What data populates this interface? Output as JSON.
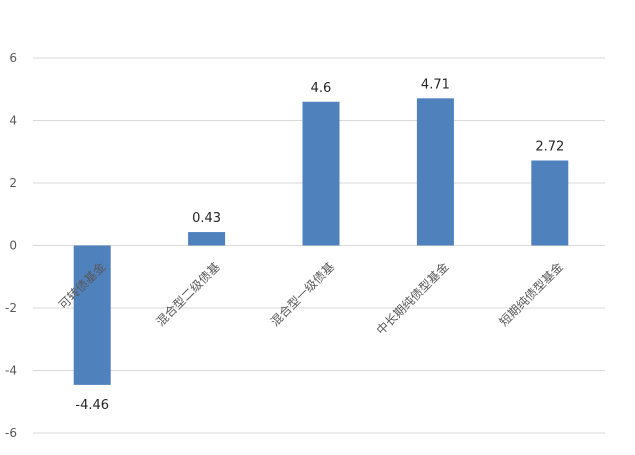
{
  "chart_data": {
    "type": "bar",
    "categories": [
      "可转债基金",
      "混合型二级债基",
      "混合型一级债基",
      "中长期纯债型基金",
      "短期纯债型基金"
    ],
    "values": [
      -4.46,
      0.43,
      4.6,
      4.71,
      2.72
    ],
    "value_labels": [
      "-4.46",
      "0.43",
      "4.6",
      "4.71",
      "2.72"
    ],
    "yticks": [
      "6",
      "4",
      "2",
      "0",
      "-2",
      "-4",
      "-6"
    ],
    "ylim": [
      -6,
      6
    ],
    "title": "",
    "xlabel": "",
    "ylabel": "",
    "grid": true,
    "legend": "none",
    "colors": {
      "bar": "#4F81BD",
      "grid": "#D9D9D9",
      "axis_text": "#595959",
      "label_text": "#262626"
    }
  }
}
